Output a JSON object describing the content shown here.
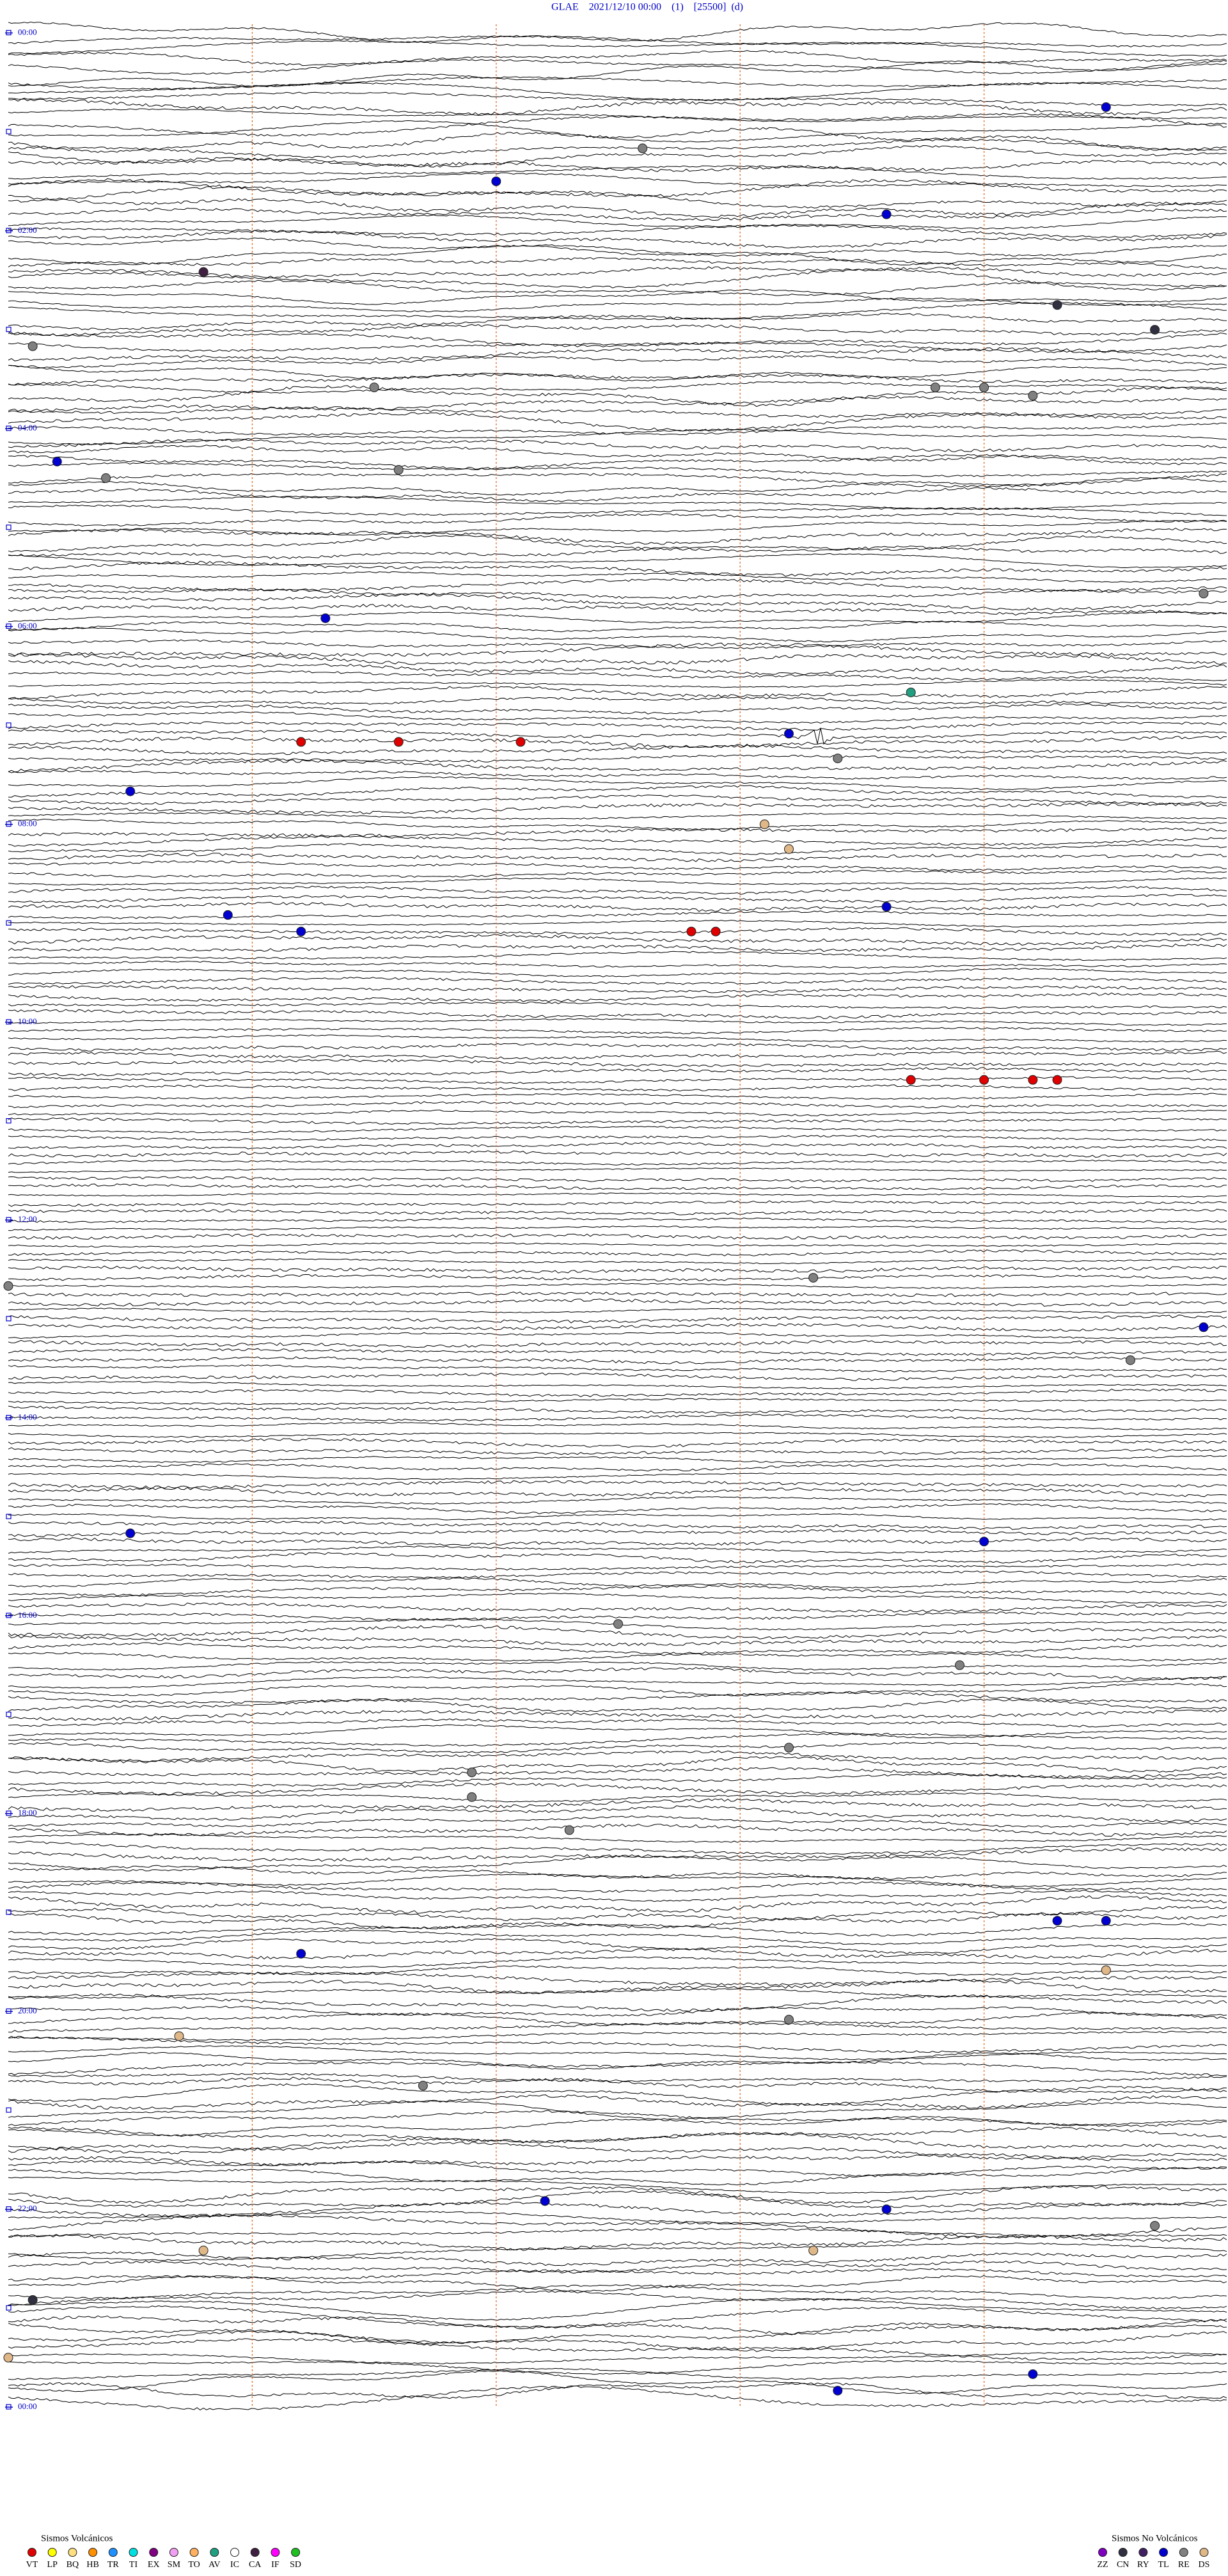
{
  "chart_data": {
    "type": "helicorder",
    "title": "GLAE    2021/12/10 00:00    (1)    [25500]  (d)",
    "xlim": [
      0,
      5
    ],
    "xticks": [
      1,
      2,
      3,
      4
    ],
    "ylim": [
      0,
      1440
    ],
    "yticks": [
      {
        "value": 0,
        "label": "00:00"
      },
      {
        "value": 120,
        "label": "02:00"
      },
      {
        "value": 240,
        "label": "04:00"
      },
      {
        "value": 360,
        "label": "06:00"
      },
      {
        "value": 480,
        "label": "08:00"
      },
      {
        "value": 600,
        "label": "10:00"
      },
      {
        "value": 720,
        "label": "12:00"
      },
      {
        "value": 840,
        "label": "14:00"
      },
      {
        "value": 960,
        "label": "16:00"
      },
      {
        "value": 1080,
        "label": "18:00"
      },
      {
        "value": 1200,
        "label": "20:00"
      },
      {
        "value": 1320,
        "label": "22:00"
      },
      {
        "value": 1440,
        "label": "00:00"
      }
    ],
    "legend": [
      {
        "title": "Sismos Volcánicos",
        "items": [
          {
            "code": "VT",
            "color": "#e00000"
          },
          {
            "code": "LP",
            "color": "#ffff00"
          },
          {
            "code": "BQ",
            "color": "#ffe080"
          },
          {
            "code": "HB",
            "color": "#ff9000"
          },
          {
            "code": "TR",
            "color": "#2090ff"
          },
          {
            "code": "TI",
            "color": "#00e0e0"
          },
          {
            "code": "EX",
            "color": "#800080"
          },
          {
            "code": "SM",
            "color": "#f0a0f0"
          },
          {
            "code": "TO",
            "color": "#ffb060"
          },
          {
            "code": "AV",
            "color": "#20a080"
          },
          {
            "code": "IC",
            "color": "#ffffff"
          },
          {
            "code": "CA",
            "color": "#402040"
          },
          {
            "code": "IF",
            "color": "#ff00ff"
          },
          {
            "code": "SD",
            "color": "#20c020"
          }
        ]
      },
      {
        "title": "Sismos No Volcánicos",
        "items": [
          {
            "code": "ZZ",
            "color": "#8000c0"
          },
          {
            "code": "CN",
            "color": "#303040"
          },
          {
            "code": "RY",
            "color": "#402060"
          },
          {
            "code": "TL",
            "color": "#0000d0"
          },
          {
            "code": "RE",
            "color": "#808080"
          },
          {
            "code": "DS",
            "color": "#e0b888"
          }
        ]
      }
    ],
    "events": [
      {
        "code": "TL",
        "time": 49.5
      },
      {
        "code": "RE",
        "time": 72.6
      },
      {
        "code": "TL",
        "time": 92.0
      },
      {
        "code": "TL",
        "time": 113.6
      },
      {
        "code": "CA",
        "time": 145.8
      },
      {
        "code": "CN",
        "time": 169.3
      },
      {
        "code": "CN",
        "time": 184.7
      },
      {
        "code": "RE",
        "time": 190.1
      },
      {
        "code": "RE",
        "time": 216.5
      },
      {
        "code": "RE",
        "time": 218.8
      },
      {
        "code": "RE",
        "time": 219.0
      },
      {
        "code": "RE",
        "time": 224.2
      },
      {
        "code": "TL",
        "time": 260.2
      },
      {
        "code": "RE",
        "time": 266.6
      },
      {
        "code": "RE",
        "time": 270.4
      },
      {
        "code": "RE",
        "time": 344.9
      },
      {
        "code": "TL",
        "time": 356.3
      },
      {
        "code": "AV",
        "time": 403.7
      },
      {
        "code": "TL",
        "time": 428.2
      },
      {
        "code": "VT",
        "time": 431.2
      },
      {
        "code": "VT",
        "time": 431.6
      },
      {
        "code": "VT",
        "time": 432.1
      },
      {
        "code": "RE",
        "time": 443.4
      },
      {
        "code": "TL",
        "time": 460.5
      },
      {
        "code": "DS",
        "time": 483.1
      },
      {
        "code": "DS",
        "time": 498.2
      },
      {
        "code": "TL",
        "time": 533.6
      },
      {
        "code": "TL",
        "time": 535.9
      },
      {
        "code": "TL",
        "time": 546.2
      },
      {
        "code": "VT",
        "time": 547.8
      },
      {
        "code": "VT",
        "time": 547.9
      },
      {
        "code": "VT",
        "time": 638.7
      },
      {
        "code": "VT",
        "time": 639.0
      },
      {
        "code": "VT",
        "time": 639.2
      },
      {
        "code": "VT",
        "time": 639.3
      },
      {
        "code": "RE",
        "time": 758.3
      },
      {
        "code": "RE",
        "time": 760.0
      },
      {
        "code": "TL",
        "time": 789.9
      },
      {
        "code": "RE",
        "time": 809.6
      },
      {
        "code": "TL",
        "time": 910.5
      },
      {
        "code": "TL",
        "time": 919.0
      },
      {
        "code": "RE",
        "time": 967.5
      },
      {
        "code": "RE",
        "time": 993.9
      },
      {
        "code": "RE",
        "time": 1043.2
      },
      {
        "code": "RE",
        "time": 1056.9
      },
      {
        "code": "RE",
        "time": 1071.9
      },
      {
        "code": "RE",
        "time": 1092.3
      },
      {
        "code": "TL",
        "time": 1149.3
      },
      {
        "code": "TL",
        "time": 1149.5
      },
      {
        "code": "TL",
        "time": 1166.2
      },
      {
        "code": "DS",
        "time": 1179.5
      },
      {
        "code": "RE",
        "time": 1208.2
      },
      {
        "code": "DS",
        "time": 1215.7
      },
      {
        "code": "RE",
        "time": 1246.7
      },
      {
        "code": "TL",
        "time": 1317.2
      },
      {
        "code": "TL",
        "time": 1323.6
      },
      {
        "code": "RE",
        "time": 1334.7
      },
      {
        "code": "DS",
        "time": 1345.8
      },
      {
        "code": "DS",
        "time": 1348.3
      },
      {
        "code": "CN",
        "time": 1375.1
      },
      {
        "code": "DS",
        "time": 1410.0
      },
      {
        "code": "TL",
        "time": 1424.2
      },
      {
        "code": "TL",
        "time": 1433.4
      }
    ]
  }
}
